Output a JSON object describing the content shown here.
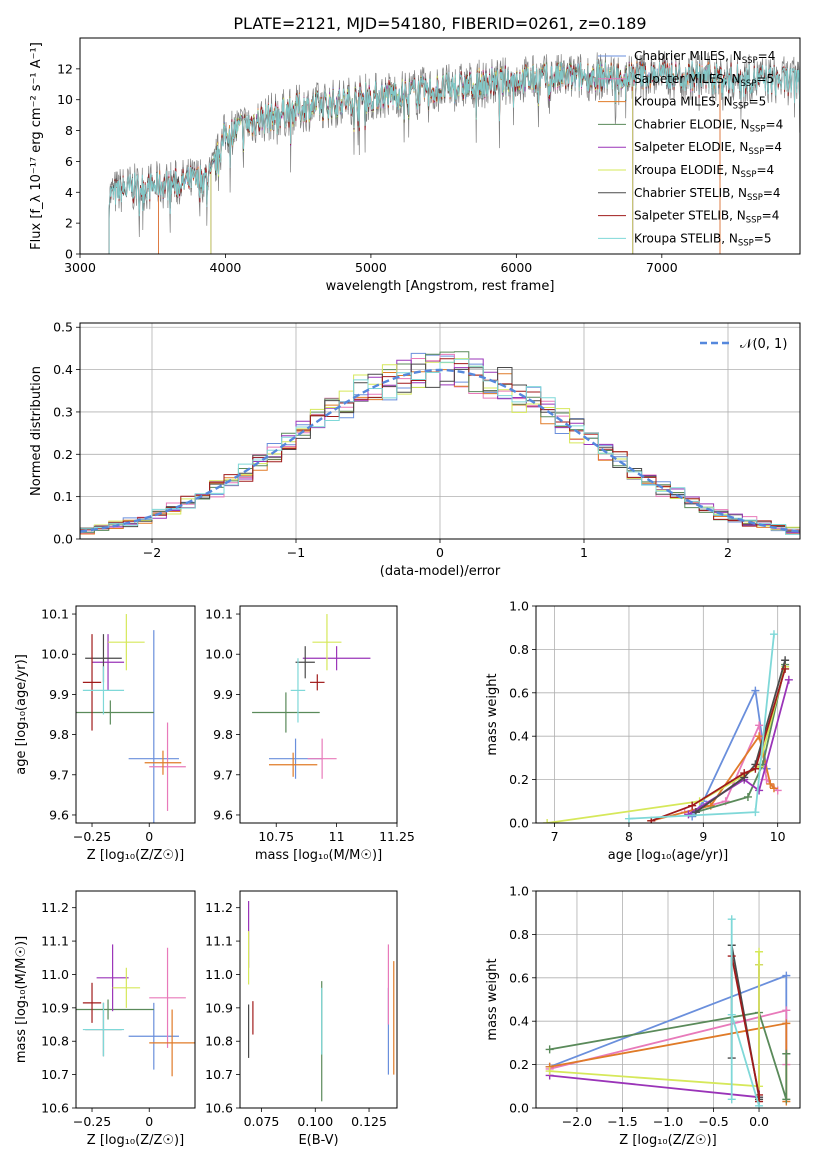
{
  "figure_title": "PLATE=2121, MJD=54180, FIBERID=0261, z=0.189",
  "colors": {
    "Chabrier MILES": "#6a8fdc",
    "Salpeter MILES": "#e87aba",
    "Kroupa MILES": "#e07b28",
    "Chabrier ELODIE": "#5a8a5a",
    "Salpeter ELODIE": "#9a34b8",
    "Kroupa ELODIE": "#d6e85a",
    "Chabrier STELIB": "#4a4a4a",
    "Salpeter STELIB": "#a01b1b",
    "Kroupa STELIB": "#7fd8d8",
    "data": "#808080",
    "gaussian": "#5588dd"
  },
  "chart_data": [
    {
      "id": "spectrum",
      "type": "line",
      "xlabel": "wavelength [Angstrom, rest frame]",
      "ylabel": "Flux [f_λ 10⁻¹⁷ erg cm⁻² s⁻¹ A⁻¹]",
      "xlim": [
        3000,
        7950
      ],
      "ylim": [
        0,
        14
      ],
      "xticks": [
        3000,
        4000,
        5000,
        6000,
        7000
      ],
      "yticks": [
        0,
        2,
        4,
        6,
        8,
        10,
        12
      ],
      "grid": false,
      "legend": [
        {
          "model": "Chabrier MILES",
          "label": "Chabrier MILES, N",
          "nssp": "=4"
        },
        {
          "model": "Salpeter MILES",
          "label": "Salpeter MILES, N",
          "nssp": "=5"
        },
        {
          "model": "Kroupa MILES",
          "label": "Kroupa MILES, N",
          "nssp": "=5"
        },
        {
          "model": "Chabrier ELODIE",
          "label": "Chabrier ELODIE, N",
          "nssp": "=4"
        },
        {
          "model": "Salpeter ELODIE",
          "label": "Salpeter ELODIE, N",
          "nssp": "=4"
        },
        {
          "model": "Kroupa ELODIE",
          "label": "Kroupa ELODIE, N",
          "nssp": "=4"
        },
        {
          "model": "Chabrier STELIB",
          "label": "Chabrier STELIB, N",
          "nssp": "=4"
        },
        {
          "model": "Salpeter STELIB",
          "label": "Salpeter STELIB, N",
          "nssp": "=4"
        },
        {
          "model": "Kroupa STELIB",
          "label": "Kroupa STELIB, N",
          "nssp": "=5"
        }
      ],
      "continuum": {
        "x": [
          3200,
          3300,
          3500,
          3700,
          3900,
          4000,
          4200,
          4500,
          5000,
          5500,
          6000,
          6500,
          7000,
          7500,
          7900
        ],
        "y": [
          3.8,
          4.2,
          4.4,
          4.6,
          5.0,
          7.8,
          8.6,
          9.4,
          10.2,
          10.7,
          11.3,
          11.5,
          11.6,
          11.4,
          11.2
        ]
      },
      "model_range": {
        "Chabrier MILES": [
          3540,
          7400
        ],
        "Salpeter MILES": [
          3540,
          7400
        ],
        "Kroupa MILES": [
          3540,
          7400
        ],
        "Chabrier ELODIE": [
          3900,
          6800
        ],
        "Salpeter ELODIE": [
          3900,
          6800
        ],
        "Kroupa ELODIE": [
          3900,
          6800
        ],
        "Chabrier STELIB": [
          3200,
          7950
        ],
        "Salpeter STELIB": [
          3200,
          7950
        ],
        "Kroupa STELIB": [
          3200,
          7950
        ]
      }
    },
    {
      "id": "residuals",
      "type": "histogram",
      "xlabel": "(data-model)/error",
      "ylabel": "Normed distribution",
      "xlim": [
        -2.5,
        2.5
      ],
      "ylim": [
        0,
        0.51
      ],
      "xticks": [
        -2,
        -1,
        0,
        1,
        2
      ],
      "yticks": [
        0.0,
        0.1,
        0.2,
        0.3,
        0.4,
        0.5
      ],
      "grid": true,
      "legend": "𝒩(0, 1)",
      "legend_position": "upper right",
      "bin_width": 0.1
    },
    {
      "id": "age_vs_Z",
      "type": "errorbar",
      "xlabel": "Z [log₁₀(Z/Z☉)]",
      "ylabel": "age  [log₁₀(age/yr)]",
      "xlim": [
        -0.32,
        0.2
      ],
      "ylim": [
        9.58,
        10.12
      ],
      "xticks": [
        -0.25,
        0.0
      ],
      "yticks": [
        9.6,
        9.7,
        9.8,
        9.9,
        10.0,
        10.1
      ],
      "grid": false,
      "points": [
        {
          "model": "Chabrier MILES",
          "x": 0.02,
          "y": 9.74,
          "xerr": 0.11,
          "yerr": 0.32
        },
        {
          "model": "Salpeter MILES",
          "x": 0.08,
          "y": 9.72,
          "xerr": 0.08,
          "yerr": 0.11
        },
        {
          "model": "Kroupa MILES",
          "x": 0.06,
          "y": 9.73,
          "xerr": 0.08,
          "yerr": 0.03
        },
        {
          "model": "Chabrier ELODIE",
          "x": -0.17,
          "y": 9.855,
          "xerr": 0.19,
          "yerr": 0.03
        },
        {
          "model": "Salpeter ELODIE",
          "x": -0.18,
          "y": 9.98,
          "xerr": 0.07,
          "yerr": 0.07
        },
        {
          "model": "Kroupa ELODIE",
          "x": -0.1,
          "y": 10.03,
          "xerr": 0.08,
          "yerr": 0.07
        },
        {
          "model": "Chabrier STELIB",
          "x": -0.2,
          "y": 9.99,
          "xerr": 0.08,
          "yerr": 0.06
        },
        {
          "model": "Salpeter STELIB",
          "x": -0.25,
          "y": 9.93,
          "xerr": 0.04,
          "yerr": 0.12
        },
        {
          "model": "Kroupa STELIB",
          "x": -0.2,
          "y": 9.91,
          "xerr": 0.09,
          "yerr": 0.06
        }
      ]
    },
    {
      "id": "age_vs_mass",
      "type": "errorbar",
      "xlabel": "mass [log₁₀(M/M☉)]",
      "ylabel": "",
      "xlim": [
        10.6,
        11.25
      ],
      "ylim": [
        9.58,
        10.12
      ],
      "xticks": [
        10.75,
        11.0,
        11.25
      ],
      "yticks": [
        9.6,
        9.7,
        9.8,
        9.9,
        10.0,
        10.1
      ],
      "grid": false,
      "points": [
        {
          "model": "Chabrier MILES",
          "x": 10.83,
          "y": 9.74,
          "xerr": 0.11,
          "yerr": 0.05
        },
        {
          "model": "Salpeter MILES",
          "x": 10.94,
          "y": 9.74,
          "xerr": 0.06,
          "yerr": 0.05
        },
        {
          "model": "Kroupa MILES",
          "x": 10.82,
          "y": 9.725,
          "xerr": 0.1,
          "yerr": 0.03
        },
        {
          "model": "Chabrier ELODIE",
          "x": 10.79,
          "y": 9.855,
          "xerr": 0.14,
          "yerr": 0.05
        },
        {
          "model": "Salpeter ELODIE",
          "x": 11.0,
          "y": 9.99,
          "xerr": 0.14,
          "yerr": 0.03
        },
        {
          "model": "Kroupa ELODIE",
          "x": 10.96,
          "y": 10.03,
          "xerr": 0.06,
          "yerr": 0.07
        },
        {
          "model": "Chabrier STELIB",
          "x": 10.87,
          "y": 9.98,
          "xerr": 0.04,
          "yerr": 0.04
        },
        {
          "model": "Salpeter STELIB",
          "x": 10.92,
          "y": 9.93,
          "xerr": 0.03,
          "yerr": 0.02
        },
        {
          "model": "Kroupa STELIB",
          "x": 10.84,
          "y": 9.91,
          "xerr": 0.03,
          "yerr": 0.08
        }
      ]
    },
    {
      "id": "massweight_vs_age",
      "type": "line",
      "xlabel": "age  [log₁₀(age/yr)]",
      "ylabel": "mass weight",
      "xlim": [
        6.75,
        10.3
      ],
      "ylim": [
        0,
        1.0
      ],
      "xticks": [
        7,
        8,
        9,
        10
      ],
      "yticks": [
        0.0,
        0.2,
        0.4,
        0.6,
        0.8,
        1.0
      ],
      "grid": true,
      "series": [
        {
          "model": "Chabrier MILES",
          "x": [
            8.85,
            9.0,
            9.7,
            9.85
          ],
          "y": [
            0.03,
            0.1,
            0.61,
            0.25
          ]
        },
        {
          "model": "Salpeter MILES",
          "x": [
            8.75,
            9.3,
            9.75,
            9.85,
            10.0
          ],
          "y": [
            0.05,
            0.1,
            0.45,
            0.2,
            0.15
          ]
        },
        {
          "model": "Kroupa MILES",
          "x": [
            8.3,
            9.1,
            9.75,
            9.9,
            9.95
          ],
          "y": [
            0.01,
            0.08,
            0.4,
            0.18,
            0.16
          ]
        },
        {
          "model": "Chabrier ELODIE",
          "x": [
            8.9,
            9.6,
            9.8,
            10.1
          ],
          "y": [
            0.05,
            0.12,
            0.27,
            0.73
          ]
        },
        {
          "model": "Salpeter ELODIE",
          "x": [
            8.8,
            9.55,
            9.75,
            10.15
          ],
          "y": [
            0.04,
            0.2,
            0.15,
            0.66
          ]
        },
        {
          "model": "Kroupa ELODIE",
          "x": [
            6.9,
            8.95,
            9.75,
            10.1
          ],
          "y": [
            0.0,
            0.1,
            0.26,
            0.72
          ]
        },
        {
          "model": "Chabrier STELIB",
          "x": [
            8.9,
            9.55,
            9.7,
            10.1
          ],
          "y": [
            0.05,
            0.21,
            0.27,
            0.75
          ]
        },
        {
          "model": "Salpeter STELIB",
          "x": [
            8.3,
            8.85,
            9.55,
            9.7,
            10.1
          ],
          "y": [
            0.01,
            0.08,
            0.23,
            0.25,
            0.71
          ]
        },
        {
          "model": "Kroupa STELIB",
          "x": [
            8.0,
            9.7,
            9.95
          ],
          "y": [
            0.02,
            0.05,
            0.87
          ]
        }
      ]
    },
    {
      "id": "mass_vs_Z",
      "type": "errorbar",
      "xlabel": "Z [log₁₀(Z/Z☉)]",
      "ylabel": "mass [log₁₀(M/M☉)]",
      "xlim": [
        -0.32,
        0.2
      ],
      "ylim": [
        10.6,
        11.25
      ],
      "xticks": [
        -0.25,
        0.0
      ],
      "yticks": [
        10.6,
        10.7,
        10.8,
        10.9,
        11.0,
        11.1,
        11.2
      ],
      "grid": false,
      "points": [
        {
          "model": "Chabrier MILES",
          "x": 0.02,
          "y": 10.815,
          "xerr": 0.11,
          "yerr": 0.1
        },
        {
          "model": "Salpeter MILES",
          "x": 0.08,
          "y": 10.93,
          "xerr": 0.08,
          "yerr": 0.15
        },
        {
          "model": "Kroupa MILES",
          "x": 0.1,
          "y": 10.795,
          "xerr": 0.1,
          "yerr": 0.1
        },
        {
          "model": "Chabrier ELODIE",
          "x": -0.18,
          "y": 10.895,
          "xerr": 0.2,
          "yerr": 0.03
        },
        {
          "model": "Salpeter ELODIE",
          "x": -0.16,
          "y": 10.99,
          "xerr": 0.07,
          "yerr": 0.1
        },
        {
          "model": "Kroupa ELODIE",
          "x": -0.1,
          "y": 10.96,
          "xerr": 0.06,
          "yerr": 0.06
        },
        {
          "model": "Chabrier STELIB",
          "x": -0.2,
          "y": 10.835,
          "xerr": 0.08,
          "yerr": 0.08
        },
        {
          "model": "Salpeter STELIB",
          "x": -0.25,
          "y": 10.915,
          "xerr": 0.04,
          "yerr": 0.06
        },
        {
          "model": "Kroupa STELIB",
          "x": -0.2,
          "y": 10.835,
          "xerr": 0.09,
          "yerr": 0.08
        }
      ]
    },
    {
      "id": "mass_vs_ebv",
      "type": "errorbar",
      "xlabel": "E(B-V)",
      "ylabel": "",
      "xlim": [
        0.065,
        0.138
      ],
      "ylim": [
        10.6,
        11.25
      ],
      "xticks": [
        0.075,
        0.1,
        0.125
      ],
      "xticklabels": [
        "0.075",
        "0.100",
        "0.125"
      ],
      "yticks": [
        10.6,
        10.7,
        10.8,
        10.9,
        11.0,
        11.1,
        11.2
      ],
      "grid": false,
      "points": [
        {
          "model": "Chabrier MILES",
          "x": 0.134,
          "y": 10.83,
          "xerr": 0.0,
          "yerr": 0.13
        },
        {
          "model": "Salpeter MILES",
          "x": 0.134,
          "y": 10.97,
          "xerr": 0.0,
          "yerr": 0.12
        },
        {
          "model": "Kroupa MILES",
          "x": 0.1365,
          "y": 10.87,
          "xerr": 0.0,
          "yerr": 0.17
        },
        {
          "model": "Chabrier ELODIE",
          "x": 0.103,
          "y": 10.8,
          "xerr": 0.0,
          "yerr": 0.18
        },
        {
          "model": "Salpeter ELODIE",
          "x": 0.069,
          "y": 11.12,
          "xerr": 0.0,
          "yerr": 0.1
        },
        {
          "model": "Kroupa ELODIE",
          "x": 0.069,
          "y": 11.05,
          "xerr": 0.0,
          "yerr": 0.08
        },
        {
          "model": "Chabrier STELIB",
          "x": 0.069,
          "y": 10.83,
          "xerr": 0.0,
          "yerr": 0.08
        },
        {
          "model": "Salpeter STELIB",
          "x": 0.071,
          "y": 10.87,
          "xerr": 0.0,
          "yerr": 0.05
        },
        {
          "model": "Kroupa STELIB",
          "x": 0.103,
          "y": 10.86,
          "xerr": 0.0,
          "yerr": 0.1
        }
      ]
    },
    {
      "id": "massweight_vs_Z",
      "type": "line",
      "xlabel": "Z [log₁₀(Z/Z☉)]",
      "ylabel": "mass weight",
      "xlim": [
        -2.45,
        0.45
      ],
      "ylim": [
        0,
        1.0
      ],
      "xticks": [
        -2.0,
        -1.5,
        -1.0,
        -0.5,
        0.0
      ],
      "xticklabels": [
        "−2.0",
        "−1.5",
        "−1.0",
        "−0.5",
        "0.0"
      ],
      "yticks": [
        0.0,
        0.2,
        0.4,
        0.6,
        0.8,
        1.0
      ],
      "grid": true,
      "series": [
        {
          "model": "Chabrier MILES",
          "x": [
            -2.3,
            0.3,
            0.3
          ],
          "y": [
            0.19,
            0.61,
            0.25
          ]
        },
        {
          "model": "Salpeter MILES",
          "x": [
            -2.3,
            0.3,
            0.3
          ],
          "y": [
            0.18,
            0.45,
            0.2
          ]
        },
        {
          "model": "Kroupa MILES",
          "x": [
            -2.3,
            0.3,
            0.3
          ],
          "y": [
            0.19,
            0.39,
            0.03
          ]
        },
        {
          "model": "Chabrier ELODIE",
          "x": [
            -2.3,
            0.0,
            0.3,
            0.3
          ],
          "y": [
            0.27,
            0.44,
            0.04,
            0.25
          ]
        },
        {
          "model": "Salpeter ELODIE",
          "x": [
            -2.3,
            0.0,
            0.0
          ],
          "y": [
            0.15,
            0.05,
            0.66
          ]
        },
        {
          "model": "Kroupa ELODIE",
          "x": [
            -2.3,
            0.0,
            0.0,
            0.0
          ],
          "y": [
            0.17,
            0.1,
            0.72,
            0.66
          ]
        },
        {
          "model": "Chabrier STELIB",
          "x": [
            -0.3,
            -0.3,
            0.0,
            0.0
          ],
          "y": [
            0.23,
            0.75,
            0.05,
            0.04
          ]
        },
        {
          "model": "Salpeter STELIB",
          "x": [
            -0.3,
            0.0,
            0.0
          ],
          "y": [
            0.7,
            0.06,
            0.03
          ]
        },
        {
          "model": "Kroupa STELIB",
          "x": [
            -0.3,
            -0.3,
            -0.3,
            0.0
          ],
          "y": [
            0.04,
            0.87,
            0.43,
            0.01
          ]
        }
      ]
    }
  ]
}
